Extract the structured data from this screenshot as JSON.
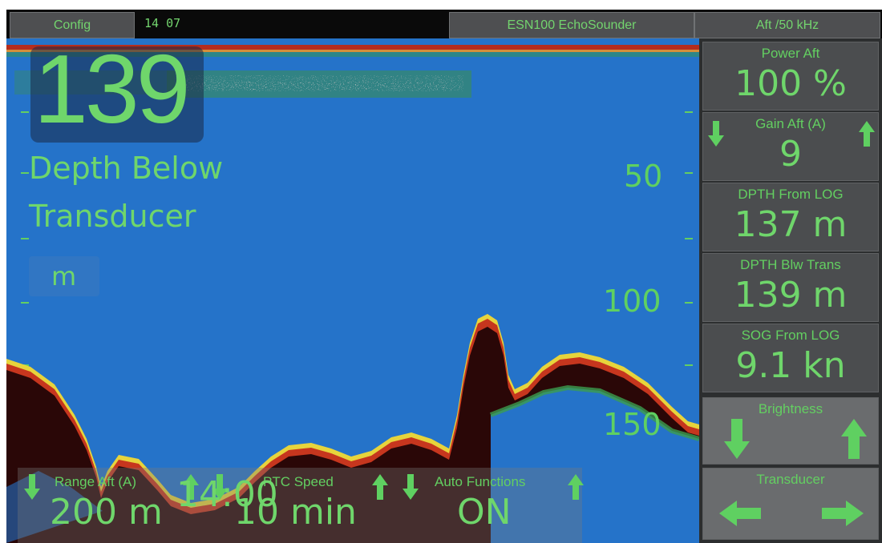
{
  "topbar": {
    "config_label": "Config",
    "clock": "14 07",
    "device_label": "ESN100 EchoSounder",
    "mode_label": "Aft /50 kHz"
  },
  "display": {
    "depth_value": "139",
    "depth_label_line1": "Depth Below",
    "depth_label_line2": "Transducer",
    "unit": "m",
    "scale_labels": [
      "50",
      "100",
      "150"
    ]
  },
  "bottom_panels": [
    {
      "title": "Range Aft (A)",
      "value": "200 m"
    },
    {
      "title": "PTC Speed",
      "value": "10 min"
    },
    {
      "title": "Auto Functions",
      "value": "ON"
    }
  ],
  "overlay_time": "14:00",
  "side_panel": {
    "power": {
      "title": "Power Aft",
      "value": "100 %"
    },
    "gain": {
      "title": "Gain Aft (A)",
      "value": "9"
    },
    "depth_log": {
      "title": "DPTH From LOG",
      "value": "137 m"
    },
    "depth_trans": {
      "title": "DPTH Blw Trans",
      "value": "139 m"
    },
    "sog": {
      "title": "SOG From LOG",
      "value": "9.1 kn"
    },
    "brightness": {
      "title": "Brightness"
    },
    "transducer": {
      "title": "Transducer"
    }
  },
  "colors": {
    "text_green": "#6fd66b",
    "water_blue": "#2573c9",
    "seabed_dark": "#2a0707",
    "echo_red": "#c6361e",
    "echo_yellow": "#e7d43c"
  }
}
